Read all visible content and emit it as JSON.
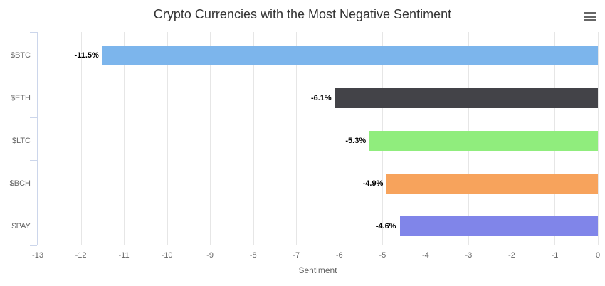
{
  "title": "Crypto Currencies with the Most Negative Sentiment",
  "menu": {
    "icon": "hamburger-icon",
    "color": "#666666"
  },
  "chart_data": {
    "type": "bar",
    "orientation": "horizontal",
    "title": "Crypto Currencies with the Most Negative Sentiment",
    "categories": [
      "$BTC",
      "$ETH",
      "$LTC",
      "$BCH",
      "$PAY"
    ],
    "values": [
      -11.5,
      -6.1,
      -5.3,
      -4.9,
      -4.6
    ],
    "data_labels": [
      "-11.5%",
      "-6.1%",
      "-5.3%",
      "-4.9%",
      "-4.6%"
    ],
    "bar_colors": [
      "#7cb5ec",
      "#434348",
      "#90ed7d",
      "#f7a35c",
      "#8085e9"
    ],
    "xlabel": "Sentiment",
    "ylabel": "",
    "xlim": [
      -13,
      0
    ],
    "xticks": [
      -13,
      -12,
      -11,
      -10,
      -9,
      -8,
      -7,
      -6,
      -5,
      -4,
      -3,
      -2,
      -1,
      0
    ],
    "grid": true,
    "legend": "none"
  },
  "colors": {
    "background": "#ffffff",
    "grid": "#e6e6e6",
    "axis_line": "#ccd6eb",
    "tick_label": "#666666",
    "title": "#333333",
    "data_label": "#000000"
  }
}
